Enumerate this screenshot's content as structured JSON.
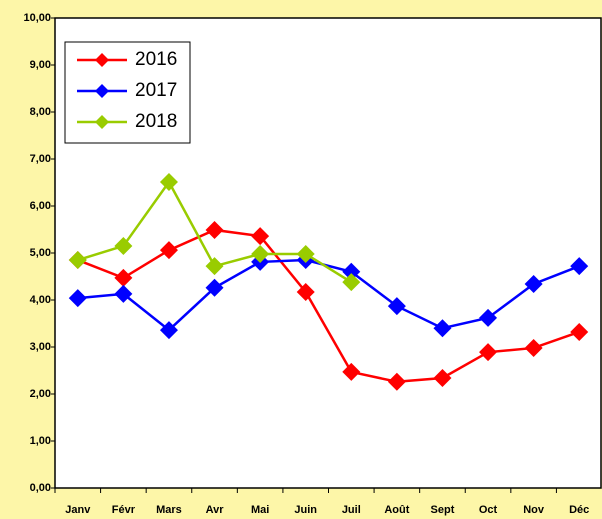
{
  "chart_data": {
    "type": "line",
    "categories": [
      "Janv",
      "Févr",
      "Mars",
      "Avr",
      "Mai",
      "Juin",
      "Juil",
      "Août",
      "Sept",
      "Oct",
      "Nov",
      "Déc"
    ],
    "series": [
      {
        "name": "2016",
        "color": "#ff0000",
        "values": [
          4.85,
          4.47,
          5.06,
          5.49,
          5.36,
          4.17,
          2.47,
          2.26,
          2.34,
          2.89,
          2.98,
          3.32
        ]
      },
      {
        "name": "2017",
        "color": "#0000ff",
        "values": [
          4.04,
          4.13,
          3.36,
          4.26,
          4.81,
          4.85,
          4.6,
          3.87,
          3.4,
          3.62,
          4.34,
          4.72
        ]
      },
      {
        "name": "2018",
        "color": "#99cc00",
        "values": [
          4.85,
          5.15,
          6.51,
          4.72,
          4.98,
          4.98,
          4.38,
          null,
          null,
          null,
          null,
          null
        ]
      }
    ],
    "ylim": [
      0,
      10
    ],
    "yticks": [
      {
        "value": 0,
        "label": "0,00"
      },
      {
        "value": 1,
        "label": "1,00"
      },
      {
        "value": 2,
        "label": "2,00"
      },
      {
        "value": 3,
        "label": "3,00"
      },
      {
        "value": 4,
        "label": "4,00"
      },
      {
        "value": 5,
        "label": "5,00"
      },
      {
        "value": 6,
        "label": "6,00"
      },
      {
        "value": 7,
        "label": "7,00"
      },
      {
        "value": 8,
        "label": "8,00"
      },
      {
        "value": 9,
        "label": "9,00"
      },
      {
        "value": 10,
        "label": "10,00"
      }
    ],
    "grid": false,
    "legend": "upper left"
  }
}
